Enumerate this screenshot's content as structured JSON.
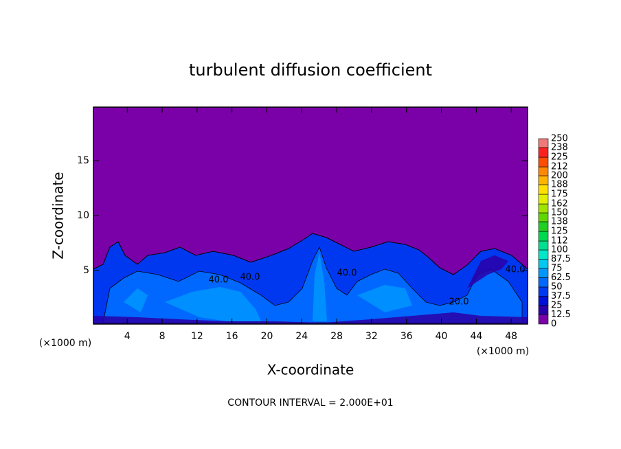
{
  "chart_data": {
    "type": "contour",
    "title": "turbulent diffusion coefficient",
    "x_label": "X-coordinate",
    "y_label": "Z-coordinate",
    "x_unit_labels": [
      "(×1000 m)",
      "(×1000 m)"
    ],
    "xlim": [
      0.125,
      49.875
    ],
    "ylim": [
      0.125,
      19.875
    ],
    "xticks": [
      4,
      8,
      12,
      16,
      20,
      24,
      28,
      32,
      36,
      40,
      44,
      48
    ],
    "yticks": [
      5,
      10,
      15
    ],
    "contour_labels": [
      "40.0",
      "40.0",
      "40.0",
      "40.0",
      "20.0"
    ],
    "colorbar": {
      "levels": [
        0,
        12.5,
        25,
        37.5,
        50,
        62.5,
        75,
        87.5,
        100,
        112,
        125,
        138,
        150,
        162,
        175,
        188,
        200,
        212,
        225,
        238,
        250
      ],
      "colors": [
        "#7a00a8",
        "#2a00a8",
        "#0010d8",
        "#0038f0",
        "#0068ff",
        "#0098ff",
        "#00c8f0",
        "#00e8c8",
        "#00e090",
        "#00d850",
        "#20d020",
        "#60d800",
        "#a0e400",
        "#e0f000",
        "#ffe000",
        "#ffb400",
        "#ff8800",
        "#ff4c00",
        "#ff2020",
        "#f07878"
      ]
    },
    "footnote": "CONTOUR INTERVAL = 2.000E+01"
  }
}
